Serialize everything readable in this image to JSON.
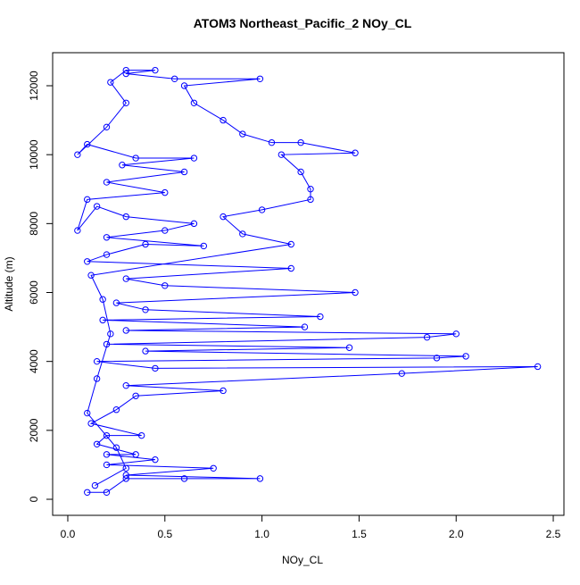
{
  "chart_data": {
    "type": "scatter",
    "title": "ATOM3 Northeast_Pacific_2 NOy_CL",
    "x_label": "NOy_CL",
    "y_label": "Altitude (m)",
    "color": "#0000ff",
    "connect_points": true,
    "xlim": [
      -0.078,
      2.555
    ],
    "ylim": [
      -466,
      12959
    ],
    "xticks": [
      {
        "value": 0,
        "label": "0.0"
      },
      0.5,
      {
        "value": 1,
        "label": "1.0"
      },
      1.5,
      {
        "value": 2,
        "label": "2.0"
      },
      2.5
    ],
    "yticks": [
      0,
      2000,
      4000,
      6000,
      8000,
      10000,
      12000
    ],
    "x": [
      0.1,
      0.2,
      0.3,
      0.6,
      0.99,
      0.3,
      0.75,
      0.2,
      0.45,
      0.2,
      0.35,
      0.15,
      0.2,
      0.38,
      0.12,
      0.25,
      0.35,
      0.8,
      0.3,
      1.72,
      2.42,
      0.45,
      0.15,
      1.9,
      2.05,
      0.4,
      1.45,
      0.2,
      1.85,
      2.0,
      0.3,
      1.22,
      0.18,
      1.3,
      0.4,
      0.25,
      1.48,
      0.5,
      0.3,
      1.15,
      0.1,
      0.2,
      0.4,
      0.7,
      0.2,
      0.5,
      0.65,
      0.3,
      0.15,
      0.05,
      0.1,
      0.5,
      0.2,
      0.6,
      0.28,
      0.65,
      0.35,
      0.1,
      0.05,
      0.2,
      0.3,
      0.22,
      0.3,
      0.45,
      0.3,
      0.55,
      0.99,
      0.6,
      0.65,
      0.8,
      0.9,
      1.05,
      1.2,
      1.48,
      1.1,
      1.2,
      1.25,
      1.25,
      1.0,
      0.8,
      0.9,
      1.15,
      0.12,
      0.18,
      0.22,
      0.15,
      0.1,
      0.25,
      0.3,
      0.14
    ],
    "values": [
      200,
      200,
      600,
      600,
      600,
      700,
      900,
      1000,
      1150,
      1300,
      1300,
      1600,
      1850,
      1850,
      2200,
      2600,
      3000,
      3150,
      3300,
      3650,
      3850,
      3800,
      4000,
      4100,
      4150,
      4300,
      4400,
      4500,
      4700,
      4800,
      4900,
      5000,
      5200,
      5300,
      5500,
      5700,
      6000,
      6200,
      6400,
      6700,
      6900,
      7100,
      7400,
      7350,
      7600,
      7800,
      8000,
      8200,
      8500,
      7800,
      8700,
      8900,
      9200,
      9500,
      9700,
      9900,
      9900,
      10300,
      10000,
      10800,
      11500,
      12100,
      12450,
      12450,
      12350,
      12200,
      12200,
      12000,
      11500,
      11000,
      10600,
      10350,
      10350,
      10050,
      10000,
      9500,
      9000,
      8700,
      8400,
      8200,
      7700,
      7400,
      6500,
      5800,
      4800,
      3500,
      2500,
      1500,
      900,
      400
    ]
  }
}
